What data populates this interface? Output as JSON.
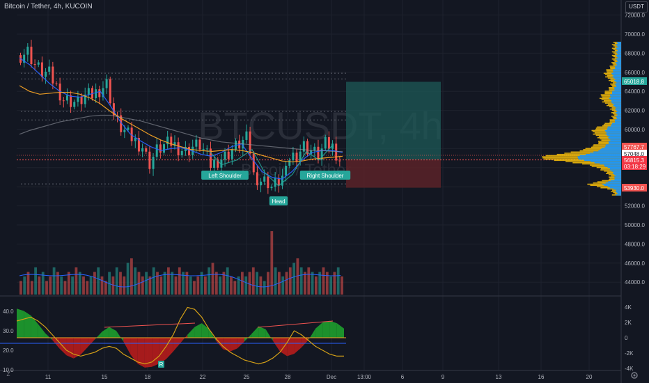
{
  "header": {
    "title": "Bitcoin / Tether, 4h, KUCOIN",
    "currency": "USDT",
    "watermark_symbol": "BTCUSDT, 4h",
    "watermark_name": "Bitcoin / Tether"
  },
  "colors": {
    "background": "#131722",
    "up": "#26a69a",
    "down": "#ef5350",
    "ema_fast": "#2962ff",
    "ma_slow": "#f7a325",
    "ma_long": "#9598a1",
    "profile_blue": "#2196f3",
    "profile_orange": "#f0b90b",
    "target_zone": "#1d5a57",
    "stop_zone": "#5a2228"
  },
  "chart_data": [
    {
      "type": "candlestick",
      "title": "Bitcoin / Tether, 4h, KUCOIN",
      "x_ticks": [
        "11",
        "15",
        "18",
        "22",
        "25",
        "28",
        "Dec",
        "13:00",
        "6",
        "9",
        "13",
        "16",
        "20"
      ],
      "y_ticks": [
        72000,
        70000,
        68000,
        66000,
        64000,
        62000,
        60000,
        58000,
        56000,
        54000,
        52000,
        50000,
        48000,
        46000,
        44000
      ],
      "ylim": [
        43000,
        73000
      ],
      "price_path": [
        [
          0,
          67800
        ],
        [
          2,
          68200
        ],
        [
          4,
          66800
        ],
        [
          6,
          66000
        ],
        [
          8,
          65800
        ],
        [
          10,
          64500
        ],
        [
          12,
          63200
        ],
        [
          14,
          63000
        ],
        [
          16,
          62800
        ],
        [
          18,
          63500
        ],
        [
          20,
          63600
        ],
        [
          22,
          64200
        ],
        [
          24,
          64800
        ],
        [
          25,
          63400
        ],
        [
          26,
          61500
        ],
        [
          28,
          60200
        ],
        [
          30,
          59400
        ],
        [
          32,
          58800
        ],
        [
          34,
          58200
        ],
        [
          35,
          57200
        ],
        [
          36,
          56500
        ],
        [
          38,
          57800
        ],
        [
          40,
          58300
        ],
        [
          42,
          58600
        ],
        [
          44,
          58100
        ],
        [
          46,
          57700
        ],
        [
          48,
          58200
        ],
        [
          50,
          58400
        ],
        [
          52,
          57200
        ],
        [
          53,
          56300
        ],
        [
          55,
          56800
        ],
        [
          57,
          57200
        ],
        [
          59,
          57900
        ],
        [
          61,
          58500
        ],
        [
          63,
          59000
        ],
        [
          64,
          57800
        ],
        [
          65,
          55200
        ],
        [
          67,
          54700
        ],
        [
          69,
          54500
        ],
        [
          70,
          54000
        ],
        [
          72,
          54600
        ],
        [
          74,
          55400
        ],
        [
          75,
          57100
        ],
        [
          77,
          57400
        ],
        [
          79,
          58300
        ],
        [
          81,
          57800
        ],
        [
          83,
          57300
        ],
        [
          85,
          58400
        ],
        [
          87,
          58200
        ],
        [
          89,
          56900
        ]
      ],
      "series": [
        {
          "name": "EMA fast",
          "values": [
            67500,
            66800,
            65800,
            64800,
            64000,
            63500,
            63400,
            63700,
            64000,
            62500,
            60800,
            59500,
            58800,
            58200,
            57800,
            58000,
            58100,
            57800,
            57400,
            57200,
            57600,
            58200,
            58500,
            57000,
            55600,
            55000,
            54800,
            55600,
            56800,
            57600,
            57800,
            57800,
            57600
          ]
        },
        {
          "name": "MA slow",
          "values": [
            64600,
            64000,
            63700,
            63800,
            63900,
            63900,
            63700,
            63300,
            62700,
            61900,
            61200,
            60600,
            60000,
            59400,
            58900,
            58500,
            58200,
            57900,
            57800,
            57700,
            57800,
            57900,
            57800,
            57600,
            57300,
            57000,
            56700,
            56600,
            56700,
            56900,
            57000,
            57100,
            57200
          ]
        },
        {
          "name": "MA long",
          "values": [
            59500,
            59900,
            60200,
            60500,
            60800,
            61000,
            61200,
            61400,
            61500,
            61500,
            61300,
            61100,
            60900,
            60600,
            60300,
            60000,
            59700,
            59400,
            59100,
            58900,
            58700,
            58600,
            58500,
            58400,
            58300,
            58200,
            58100,
            58000,
            57900,
            57800,
            57800,
            57700,
            57700
          ]
        }
      ],
      "volume_values": [
        3,
        4,
        5,
        3,
        6,
        4,
        5,
        3,
        4,
        6,
        5,
        4,
        3,
        5,
        4,
        6,
        5,
        4,
        3,
        4,
        5,
        6,
        4,
        3,
        5,
        4,
        6,
        5,
        4,
        7,
        8,
        6,
        5,
        4,
        5,
        4,
        6,
        5,
        4,
        5,
        6,
        5,
        4,
        6,
        5,
        5,
        4,
        3,
        4,
        5,
        4,
        6,
        7,
        5,
        4,
        5,
        6,
        4,
        3,
        4,
        5,
        4,
        5,
        6,
        5,
        4,
        3,
        5,
        14,
        6,
        5,
        4,
        5,
        6,
        7,
        8,
        6,
        5,
        6,
        5,
        4,
        5,
        6,
        5,
        4,
        5,
        6,
        4
      ],
      "pattern_labels": [
        "Left Shoulder",
        "Head",
        "Right Shoulder"
      ],
      "price_labels": [
        {
          "text": "65018.8",
          "value": 65018.8,
          "color": "#26a69a"
        },
        {
          "text": "57767.7",
          "value": 57767.7,
          "color": "#ef5350"
        },
        {
          "text": "57048.0",
          "value": 57048.0,
          "color": "#ffffff"
        },
        {
          "text": "56815.3",
          "value": 56815.3,
          "color": "#f23645"
        },
        {
          "text": "03:18:29",
          "value": 56400,
          "color": "#f23645"
        },
        {
          "text": "53930.0",
          "value": 53930.0,
          "color": "#ef5350"
        }
      ],
      "position_tool": {
        "entry": 56850,
        "target": 65000,
        "stop": 53900
      }
    },
    {
      "type": "area",
      "title": "",
      "y_ticks_left": [
        "40.0",
        "30.0",
        "20.0",
        "10.0"
      ],
      "y_ticks_right": [
        "4K",
        "2K",
        "0",
        "-2K",
        "-4K"
      ],
      "ylim_right": [
        -4000,
        4000
      ],
      "momentum": [
        3800,
        3500,
        2900,
        1800,
        600,
        -300,
        -1400,
        -2300,
        -2700,
        -2200,
        -1200,
        -200,
        800,
        1400,
        900,
        -500,
        -2200,
        -3400,
        -3900,
        -3800,
        -3400,
        -2800,
        -1800,
        -700,
        400,
        1400,
        1900,
        1200,
        -400,
        -1500,
        -1800,
        -1400,
        -500,
        500,
        1500,
        1100,
        -400,
        -1800,
        -2400,
        -2100,
        -1300,
        -300,
        1200,
        2000,
        2200,
        1900,
        1200
      ],
      "oscillator": [
        35,
        36,
        37,
        35,
        32,
        28,
        24,
        20,
        18,
        17,
        18,
        19,
        21,
        22,
        21,
        18,
        16,
        14,
        13,
        14,
        17,
        22,
        28,
        36,
        42,
        41,
        37,
        31,
        26,
        22,
        19,
        17,
        15,
        14,
        13,
        14,
        16,
        19,
        24,
        30,
        28,
        25,
        22,
        20,
        18,
        17,
        17
      ],
      "signal_label": "R"
    }
  ]
}
